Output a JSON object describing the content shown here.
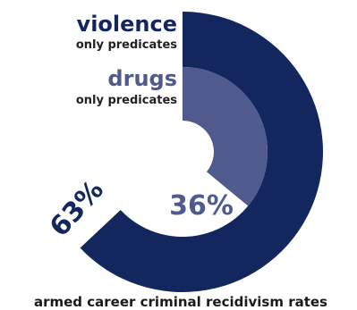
{
  "chart_data": {
    "type": "pie",
    "title": "armed career criminal recidivism rates",
    "series": [
      {
        "name": "violence",
        "sublabel": "only predicates",
        "value": 63,
        "value_label": "63%",
        "color": "#14265e"
      },
      {
        "name": "drugs",
        "sublabel": "only predicates",
        "value": 36,
        "value_label": "36%",
        "color": "#515a8c"
      }
    ]
  }
}
